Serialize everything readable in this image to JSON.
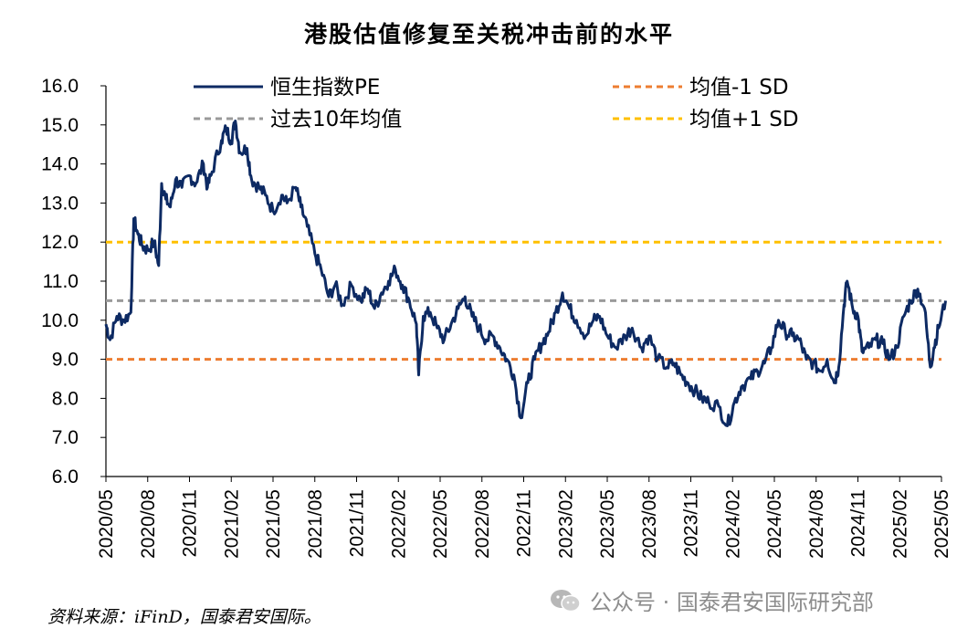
{
  "title": "港股估值修复至关税冲击前的水平",
  "source": "资料来源：iFinD，国泰君安国际。",
  "watermark": "公众号 · 国泰君安国际研究部",
  "chart_data": {
    "type": "line",
    "title": "港股估值修复至关税冲击前的水平",
    "xlabel": "",
    "ylabel": "",
    "ylim": [
      6.0,
      16.0
    ],
    "yticks": [
      "6.0",
      "7.0",
      "8.0",
      "9.0",
      "10.0",
      "11.0",
      "12.0",
      "13.0",
      "14.0",
      "15.0",
      "16.0"
    ],
    "xlim": [
      "2020-05",
      "2025-05"
    ],
    "xticks": [
      "2020/05",
      "2020/08",
      "2020/11",
      "2021/02",
      "2021/05",
      "2021/08",
      "2021/11",
      "2022/02",
      "2022/05",
      "2022/08",
      "2022/11",
      "2023/02",
      "2023/05",
      "2023/08",
      "2023/11",
      "2024/02",
      "2024/05",
      "2024/08",
      "2024/11",
      "2025/02",
      "2025/05"
    ],
    "grid": false,
    "legend_position": "top",
    "series": [
      {
        "name": "恒生指数PE",
        "color": "#0d2a63",
        "style": "solid",
        "points": [
          [
            "2020-05-01",
            9.9
          ],
          [
            "2020-05-10",
            9.5
          ],
          [
            "2020-05-25",
            10.1
          ],
          [
            "2020-06-10",
            10.0
          ],
          [
            "2020-06-25",
            10.2
          ],
          [
            "2020-07-01",
            12.6
          ],
          [
            "2020-07-10",
            12.2
          ],
          [
            "2020-07-20",
            11.9
          ],
          [
            "2020-08-01",
            11.8
          ],
          [
            "2020-08-15",
            12.0
          ],
          [
            "2020-08-25",
            11.4
          ],
          [
            "2020-09-01",
            13.5
          ],
          [
            "2020-09-10",
            13.1
          ],
          [
            "2020-09-20",
            12.9
          ],
          [
            "2020-10-01",
            13.6
          ],
          [
            "2020-10-15",
            13.4
          ],
          [
            "2020-11-01",
            13.7
          ],
          [
            "2020-11-15",
            13.5
          ],
          [
            "2020-12-01",
            14.0
          ],
          [
            "2020-12-10",
            13.4
          ],
          [
            "2020-12-20",
            13.8
          ],
          [
            "2021-01-10",
            14.6
          ],
          [
            "2021-01-20",
            14.9
          ],
          [
            "2021-02-01",
            14.6
          ],
          [
            "2021-02-10",
            15.1
          ],
          [
            "2021-02-20",
            14.3
          ],
          [
            "2021-03-05",
            14.4
          ],
          [
            "2021-03-15",
            13.6
          ],
          [
            "2021-04-01",
            13.4
          ],
          [
            "2021-04-15",
            13.2
          ],
          [
            "2021-05-01",
            12.8
          ],
          [
            "2021-05-20",
            13.2
          ],
          [
            "2021-06-01",
            13.0
          ],
          [
            "2021-06-20",
            13.4
          ],
          [
            "2021-07-01",
            12.9
          ],
          [
            "2021-07-15",
            12.4
          ],
          [
            "2021-08-01",
            11.7
          ],
          [
            "2021-08-15",
            11.3
          ],
          [
            "2021-09-01",
            10.6
          ],
          [
            "2021-09-15",
            10.9
          ],
          [
            "2021-10-01",
            10.4
          ],
          [
            "2021-10-20",
            10.9
          ],
          [
            "2021-11-10",
            10.5
          ],
          [
            "2021-11-25",
            10.8
          ],
          [
            "2021-12-10",
            10.3
          ],
          [
            "2021-12-25",
            10.7
          ],
          [
            "2022-01-10",
            11.0
          ],
          [
            "2022-01-25",
            11.3
          ],
          [
            "2022-02-10",
            10.9
          ],
          [
            "2022-02-25",
            10.5
          ],
          [
            "2022-03-10",
            9.9
          ],
          [
            "2022-03-15",
            8.6
          ],
          [
            "2022-03-25",
            10.1
          ],
          [
            "2022-04-10",
            10.2
          ],
          [
            "2022-04-25",
            9.8
          ],
          [
            "2022-05-10",
            9.5
          ],
          [
            "2022-05-25",
            9.9
          ],
          [
            "2022-06-10",
            10.3
          ],
          [
            "2022-06-25",
            10.6
          ],
          [
            "2022-07-10",
            10.1
          ],
          [
            "2022-07-25",
            9.8
          ],
          [
            "2022-08-10",
            9.5
          ],
          [
            "2022-08-25",
            9.6
          ],
          [
            "2022-09-10",
            9.3
          ],
          [
            "2022-09-25",
            9.0
          ],
          [
            "2022-10-10",
            8.6
          ],
          [
            "2022-10-25",
            7.5
          ],
          [
            "2022-11-10",
            8.4
          ],
          [
            "2022-11-25",
            9.0
          ],
          [
            "2022-12-10",
            9.4
          ],
          [
            "2022-12-25",
            9.7
          ],
          [
            "2023-01-10",
            10.2
          ],
          [
            "2023-01-25",
            10.7
          ],
          [
            "2023-02-10",
            10.3
          ],
          [
            "2023-02-25",
            10.0
          ],
          [
            "2023-03-15",
            9.6
          ],
          [
            "2023-04-01",
            10.0
          ],
          [
            "2023-04-15",
            10.1
          ],
          [
            "2023-05-01",
            9.6
          ],
          [
            "2023-05-20",
            9.3
          ],
          [
            "2023-06-10",
            9.6
          ],
          [
            "2023-06-25",
            9.8
          ],
          [
            "2023-07-15",
            9.3
          ],
          [
            "2023-08-01",
            9.6
          ],
          [
            "2023-08-20",
            9.0
          ],
          [
            "2023-09-10",
            8.8
          ],
          [
            "2023-09-25",
            8.9
          ],
          [
            "2023-10-10",
            8.6
          ],
          [
            "2023-10-25",
            8.4
          ],
          [
            "2023-11-10",
            8.2
          ],
          [
            "2023-11-25",
            8.0
          ],
          [
            "2023-12-10",
            7.9
          ],
          [
            "2024-01-01",
            7.8
          ],
          [
            "2024-01-20",
            7.3
          ],
          [
            "2024-02-05",
            7.9
          ],
          [
            "2024-02-20",
            8.3
          ],
          [
            "2024-03-10",
            8.5
          ],
          [
            "2024-03-25",
            8.7
          ],
          [
            "2024-04-10",
            8.9
          ],
          [
            "2024-04-25",
            9.3
          ],
          [
            "2024-05-10",
            10.0
          ],
          [
            "2024-05-25",
            9.7
          ],
          [
            "2024-06-10",
            9.6
          ],
          [
            "2024-06-25",
            9.5
          ],
          [
            "2024-07-10",
            9.0
          ],
          [
            "2024-07-25",
            8.9
          ],
          [
            "2024-08-10",
            8.7
          ],
          [
            "2024-08-25",
            9.0
          ],
          [
            "2024-09-10",
            8.4
          ],
          [
            "2024-09-20",
            8.8
          ],
          [
            "2024-10-01",
            10.4
          ],
          [
            "2024-10-08",
            11.0
          ],
          [
            "2024-10-20",
            10.3
          ],
          [
            "2024-11-01",
            10.1
          ],
          [
            "2024-11-10",
            9.2
          ],
          [
            "2024-11-25",
            9.3
          ],
          [
            "2024-12-10",
            9.5
          ],
          [
            "2024-12-25",
            9.4
          ],
          [
            "2025-01-10",
            9.0
          ],
          [
            "2025-01-25",
            9.3
          ],
          [
            "2025-02-10",
            10.1
          ],
          [
            "2025-02-25",
            10.5
          ],
          [
            "2025-03-10",
            10.8
          ],
          [
            "2025-03-25",
            10.3
          ],
          [
            "2025-04-07",
            8.8
          ],
          [
            "2025-04-15",
            9.3
          ],
          [
            "2025-04-25",
            9.8
          ],
          [
            "2025-05-10",
            10.5
          ]
        ]
      },
      {
        "name": "过去10年均值",
        "color": "#9a9a9a",
        "style": "dashed",
        "value": 10.5
      },
      {
        "name": "均值-1 SD",
        "color": "#ed7d31",
        "style": "dashed",
        "value": 9.0
      },
      {
        "name": "均值+1 SD",
        "color": "#ffc000",
        "style": "dashed",
        "value": 12.0
      }
    ]
  }
}
